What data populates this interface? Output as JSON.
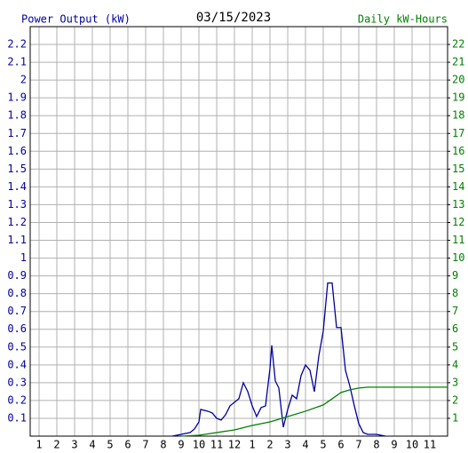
{
  "chart_data": {
    "type": "line",
    "title": "03/15/2023",
    "y_label": "Power Output (kW)",
    "y2_label": "Daily kW-Hours",
    "xlim": [
      0.5,
      24
    ],
    "xticks": [
      {
        "value": 1,
        "label": "1"
      },
      {
        "value": 2,
        "label": "2"
      },
      {
        "value": 3,
        "label": "3"
      },
      {
        "value": 4,
        "label": "4"
      },
      {
        "value": 5,
        "label": "5"
      },
      {
        "value": 6,
        "label": "6"
      },
      {
        "value": 7,
        "label": "7"
      },
      {
        "value": 8,
        "label": "8"
      },
      {
        "value": 9,
        "label": "9"
      },
      {
        "value": 10,
        "label": "10"
      },
      {
        "value": 11,
        "label": "11"
      },
      {
        "value": 12,
        "label": "12"
      },
      {
        "value": 13,
        "label": "1"
      },
      {
        "value": 14,
        "label": "2"
      },
      {
        "value": 15,
        "label": "3"
      },
      {
        "value": 16,
        "label": "4"
      },
      {
        "value": 17,
        "label": "5"
      },
      {
        "value": 18,
        "label": "6"
      },
      {
        "value": 19,
        "label": "7"
      },
      {
        "value": 20,
        "label": "8"
      },
      {
        "value": 21,
        "label": "9"
      },
      {
        "value": 22,
        "label": "10"
      },
      {
        "value": 23,
        "label": "11"
      }
    ],
    "ylim": [
      0,
      2.3
    ],
    "yticks": [
      0.1,
      0.2,
      0.3,
      0.4,
      0.5,
      0.6,
      0.7,
      0.8,
      0.9,
      1.0,
      1.1,
      1.2,
      1.3,
      1.4,
      1.5,
      1.6,
      1.7,
      1.8,
      1.9,
      2.0,
      2.1,
      2.2
    ],
    "y2lim": [
      0,
      23
    ],
    "y2ticks": [
      1,
      2,
      3,
      4,
      5,
      6,
      7,
      8,
      9,
      10,
      11,
      12,
      13,
      14,
      15,
      16,
      17,
      18,
      19,
      20,
      21,
      22
    ],
    "grid": true,
    "series": [
      {
        "name": "Power Output (kW)",
        "color": "#0000a0",
        "x": [
          8.5,
          9,
          9.5,
          9.75,
          10,
          10.1,
          10.5,
          10.75,
          11,
          11.25,
          11.5,
          11.75,
          12,
          12.25,
          12.5,
          12.75,
          13,
          13.25,
          13.5,
          13.75,
          14,
          14.1,
          14.3,
          14.5,
          14.75,
          15,
          15.25,
          15.5,
          15.75,
          16,
          16.25,
          16.5,
          16.75,
          17,
          17.25,
          17.5,
          17.75,
          18,
          18.25,
          18.5,
          18.75,
          19,
          19.25,
          19.5,
          20,
          20.5
        ],
        "values": [
          0,
          0.01,
          0.02,
          0.04,
          0.08,
          0.15,
          0.14,
          0.13,
          0.1,
          0.09,
          0.12,
          0.17,
          0.19,
          0.21,
          0.3,
          0.25,
          0.17,
          0.11,
          0.16,
          0.17,
          0.38,
          0.51,
          0.31,
          0.27,
          0.05,
          0.15,
          0.23,
          0.21,
          0.34,
          0.4,
          0.37,
          0.25,
          0.45,
          0.59,
          0.86,
          0.86,
          0.61,
          0.61,
          0.37,
          0.28,
          0.17,
          0.07,
          0.02,
          0.01,
          0.01,
          0
        ]
      },
      {
        "name": "Daily kW-Hours",
        "color": "#008000",
        "axis": "y2",
        "x": [
          9,
          10,
          11,
          12,
          13,
          14,
          15,
          16,
          17,
          17.5,
          18,
          18.5,
          19,
          19.5,
          24
        ],
        "values": [
          0,
          0.05,
          0.2,
          0.35,
          0.6,
          0.8,
          1.1,
          1.4,
          1.75,
          2.1,
          2.45,
          2.6,
          2.7,
          2.75,
          2.75
        ]
      }
    ]
  }
}
